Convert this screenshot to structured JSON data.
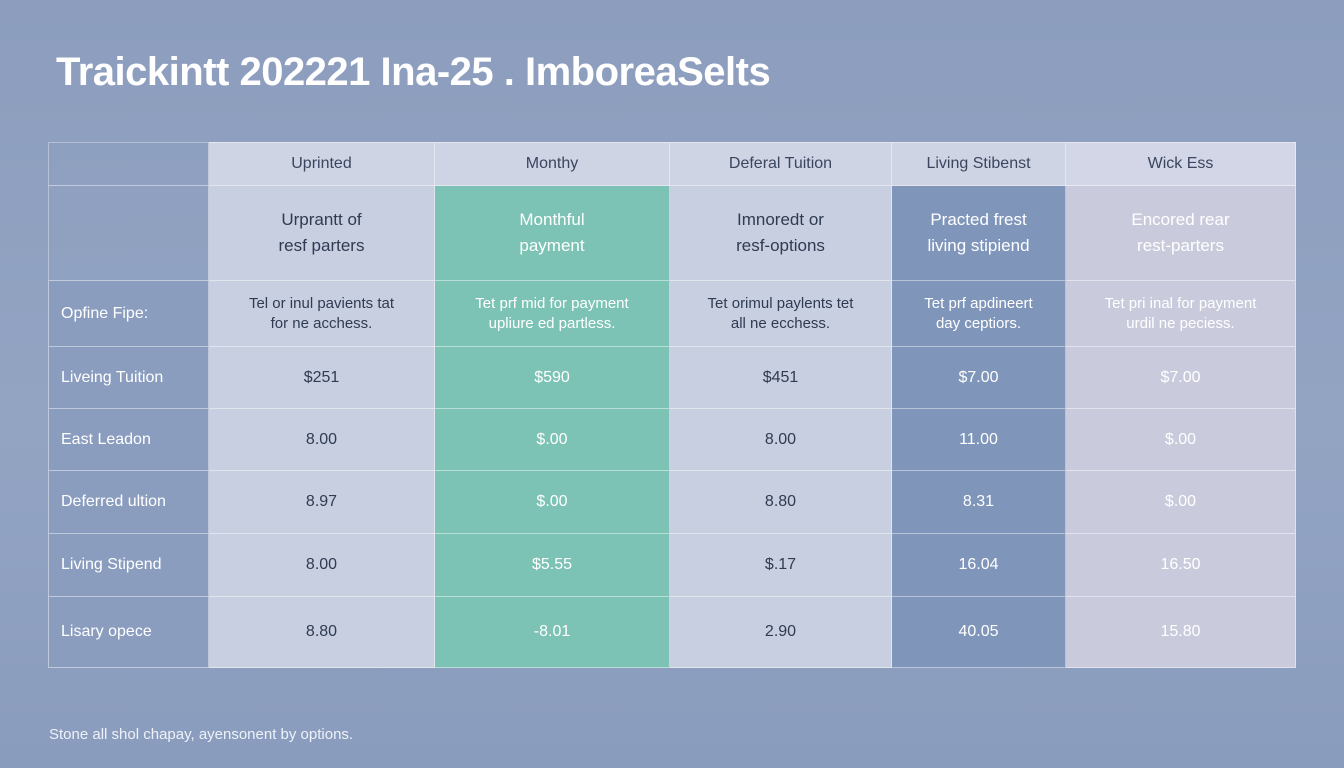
{
  "title": "Traickintt 202221 Ina-25 . ImboreaSelts",
  "footer": "Stone all shol chapay, ayensonent by options.",
  "columns": [
    {
      "header": "Uprinted",
      "sub_line1": "Urprantt of",
      "sub_line2": "resf parters"
    },
    {
      "header": "Monthy",
      "sub_line1": "Monthful",
      "sub_line2": "payment"
    },
    {
      "header": "Deferal Tuition",
      "sub_line1": "Imnoredt or",
      "sub_line2": "resf-options"
    },
    {
      "header": "Living Stibenst",
      "sub_line1": "Practed frest",
      "sub_line2": "living stipiend"
    },
    {
      "header": "Wick Ess",
      "sub_line1": "Encored rear",
      "sub_line2": "rest-parters"
    }
  ],
  "rows": [
    {
      "label": "Opfine Fipe:",
      "cells": [
        [
          "Tel or inul pavients tat",
          "for ne acchess."
        ],
        [
          "Tet prf mid for payment",
          "upliure ed partless."
        ],
        [
          "Tet orimul paylents tet",
          "all ne ecchess."
        ],
        [
          "Tet prf apdineert",
          "day ceptiors."
        ],
        [
          "Tet pri inal for payment",
          "urdil ne peciess."
        ]
      ]
    },
    {
      "label": "Liveing Tuition",
      "cells": [
        "$251",
        "$590",
        "$451",
        "$7.00",
        "$7.00"
      ]
    },
    {
      "label": "East Leadon",
      "cells": [
        "8.00",
        "$.00",
        "8.00",
        "11.00",
        "$.00"
      ]
    },
    {
      "label": "Deferred ultion",
      "cells": [
        "8.97",
        "$.00",
        "8.80",
        "8.31",
        "$.00"
      ]
    },
    {
      "label": "Living Stipend",
      "cells": [
        "8.00",
        "$5.55",
        "$.17",
        "16.04",
        "16.50"
      ]
    },
    {
      "label": "Lisary opece",
      "cells": [
        "8.80",
        "-8.01",
        "2.90",
        "40.05",
        "15.80"
      ]
    }
  ],
  "colors": {
    "background": "#8c9dbd",
    "light_column": "#c8cfe0",
    "green_column": "#7cc3b5",
    "steel_column": "#7f96ba",
    "row_label": "#8a9dbf"
  }
}
